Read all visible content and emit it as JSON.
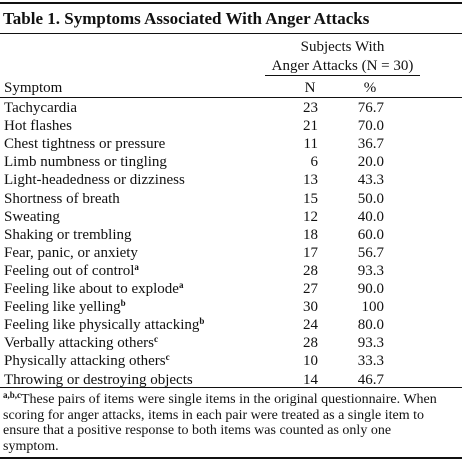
{
  "header": {
    "title": "Table 1. Symptoms Associated With Anger Attacks"
  },
  "table": {
    "group_header": [
      "Subjects With",
      "Anger Attacks (N = 30)"
    ],
    "columns": [
      "Symptom",
      "N",
      "%"
    ],
    "rows": [
      {
        "label": "Tachycardia",
        "n": "23",
        "pct": "76.7"
      },
      {
        "label": "Hot flashes",
        "n": "21",
        "pct": "70.0"
      },
      {
        "label": "Chest tightness or pressure",
        "n": "11",
        "pct": "36.7"
      },
      {
        "label": "Limb numbness or tingling",
        "n": "6",
        "pct": "20.0"
      },
      {
        "label": "Light-headedness or dizziness",
        "n": "13",
        "pct": "43.3"
      },
      {
        "label": "Shortness of breath",
        "n": "15",
        "pct": "50.0"
      },
      {
        "label": "Sweating",
        "n": "12",
        "pct": "40.0"
      },
      {
        "label": "Shaking or trembling",
        "n": "18",
        "pct": "60.0"
      },
      {
        "label": "Fear, panic, or anxiety",
        "n": "17",
        "pct": "56.7"
      },
      {
        "label": "Feeling out of control",
        "note": "a",
        "n": "28",
        "pct": "93.3"
      },
      {
        "label": "Feeling like about to explode",
        "note": "a",
        "n": "27",
        "pct": "90.0"
      },
      {
        "label": "Feeling like yelling",
        "note": "b",
        "n": "30",
        "pct": "100"
      },
      {
        "label": "Feeling like physically attacking",
        "note": "b",
        "n": "24",
        "pct": "80.0"
      },
      {
        "label": "Verbally attacking others",
        "note": "c",
        "n": "28",
        "pct": "93.3"
      },
      {
        "label": "Physically attacking others",
        "note": "c",
        "n": "10",
        "pct": "33.3"
      },
      {
        "label": "Throwing or destroying objects",
        "n": "14",
        "pct": "46.7"
      }
    ]
  },
  "footnote": {
    "marks": "a,b,c",
    "text": "These pairs of items were single items in the original questionnaire. When scoring for anger attacks, items in each pair were treated as a single item to ensure that a positive response to both items was counted as only one symptom."
  }
}
